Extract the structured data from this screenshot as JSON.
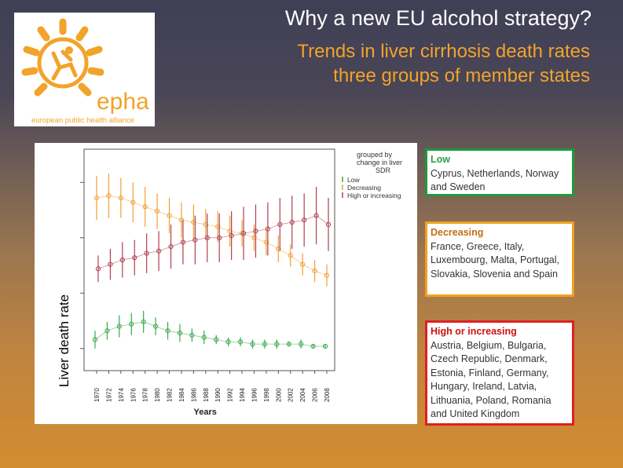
{
  "slide": {
    "title": "Why a new EU alcohol strategy?",
    "subtitle_line1": "Trends in liver cirrhosis death rates",
    "subtitle_line2": "three groups of member states"
  },
  "logo": {
    "text": "epha",
    "tagline": "european public health alliance",
    "color": "#f2a32a"
  },
  "chart_data": {
    "type": "line",
    "title": "",
    "xlabel": "Years",
    "ylabel": "Liver death rate",
    "x": [
      "1970",
      "1972",
      "1974",
      "1976",
      "1978",
      "1980",
      "1982",
      "1984",
      "1986",
      "1988",
      "1990",
      "1992",
      "1994",
      "1996",
      "1998",
      "2000",
      "2002",
      "2004",
      "2006",
      "2008"
    ],
    "x_tick_labels_as_printed": [
      "1970",
      "1972",
      "1974",
      "1976",
      "1978",
      "1980",
      "1982",
      "1984",
      "1986",
      "1988",
      "1990",
      "1992",
      "1994",
      "1996",
      "1998",
      "2000",
      "2002",
      "2004",
      "2006",
      "2008"
    ],
    "ylim": [
      0,
      1
    ],
    "legend": {
      "title": "grouped by change in liver SDR",
      "entries": [
        "Low",
        "Decreasing",
        "High or increasing"
      ],
      "placement": "top-right"
    },
    "grid": false,
    "series": [
      {
        "name": "Low",
        "color": "#3aa84a",
        "values": [
          0.14,
          0.18,
          0.2,
          0.21,
          0.22,
          0.2,
          0.18,
          0.17,
          0.16,
          0.15,
          0.14,
          0.13,
          0.13,
          0.12,
          0.12,
          0.12,
          0.12,
          0.12,
          0.11,
          0.11
        ],
        "err": [
          0.04,
          0.04,
          0.05,
          0.05,
          0.05,
          0.04,
          0.04,
          0.04,
          0.03,
          0.03,
          0.02,
          0.02,
          0.02,
          0.02,
          0.02,
          0.02,
          0.01,
          0.02,
          0.01,
          0.01
        ]
      },
      {
        "name": "Decreasing",
        "color": "#f0a032",
        "values": [
          0.78,
          0.79,
          0.78,
          0.76,
          0.74,
          0.72,
          0.7,
          0.68,
          0.67,
          0.66,
          0.65,
          0.63,
          0.62,
          0.6,
          0.58,
          0.55,
          0.52,
          0.48,
          0.45,
          0.43
        ],
        "err": [
          0.1,
          0.1,
          0.09,
          0.09,
          0.09,
          0.08,
          0.08,
          0.08,
          0.08,
          0.07,
          0.07,
          0.07,
          0.06,
          0.06,
          0.06,
          0.06,
          0.05,
          0.05,
          0.05,
          0.05
        ]
      },
      {
        "name": "High or increasing",
        "color": "#b04050",
        "values": [
          0.46,
          0.48,
          0.5,
          0.51,
          0.53,
          0.54,
          0.56,
          0.58,
          0.59,
          0.6,
          0.6,
          0.61,
          0.62,
          0.63,
          0.64,
          0.66,
          0.67,
          0.68,
          0.7,
          0.66
        ],
        "err": [
          0.06,
          0.07,
          0.08,
          0.08,
          0.09,
          0.09,
          0.1,
          0.1,
          0.11,
          0.11,
          0.11,
          0.11,
          0.12,
          0.12,
          0.12,
          0.12,
          0.12,
          0.12,
          0.13,
          0.12
        ]
      }
    ]
  },
  "groups": {
    "low": {
      "label": "Low",
      "countries": "Cyprus, Netherlands, Norway and Sweden",
      "color": "#1e9a3c"
    },
    "decreasing": {
      "label": "Decreasing",
      "countries": "France, Greece, Italy, Luxembourg, Malta, Portugal, Slovakia, Slovenia and Spain",
      "color": "#f0a020"
    },
    "high": {
      "label": "High or increasing",
      "countries": "Austria, Belgium, Bulgaria, Czech Republic, Denmark, Estonia, Finland, Germany, Hungary, Ireland, Latvia, Lithuania, Poland, Romania and United Kingdom",
      "color": "#e02020"
    }
  }
}
